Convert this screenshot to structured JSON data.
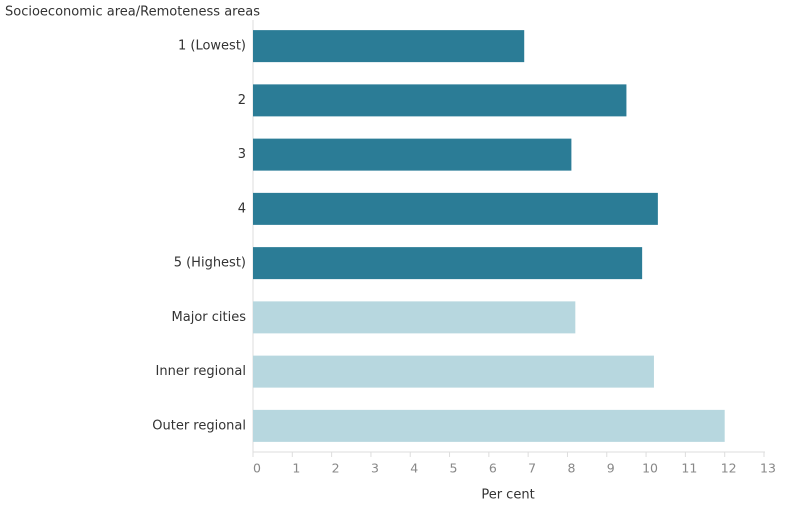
{
  "chart_data": {
    "type": "hbar",
    "y_axis_title": "Socioeconomic area/Remoteness areas",
    "x_axis_title": "Per cent",
    "categories": [
      "1 (Lowest)",
      "2",
      "3",
      "4",
      "5 (Highest)",
      "Major cities",
      "Inner regional",
      "Outer regional"
    ],
    "values": [
      6.9,
      9.5,
      8.1,
      10.3,
      9.9,
      8.2,
      10.2,
      12.0
    ],
    "colors": [
      "#2b7c96",
      "#2b7c96",
      "#2b7c96",
      "#2b7c96",
      "#2b7c96",
      "#b7d7df",
      "#b7d7df",
      "#b7d7df"
    ],
    "xlim": [
      0,
      13
    ],
    "xticks": [
      0,
      1,
      2,
      3,
      4,
      5,
      6,
      7,
      8,
      9,
      10,
      11,
      12,
      13
    ],
    "grid": false
  }
}
